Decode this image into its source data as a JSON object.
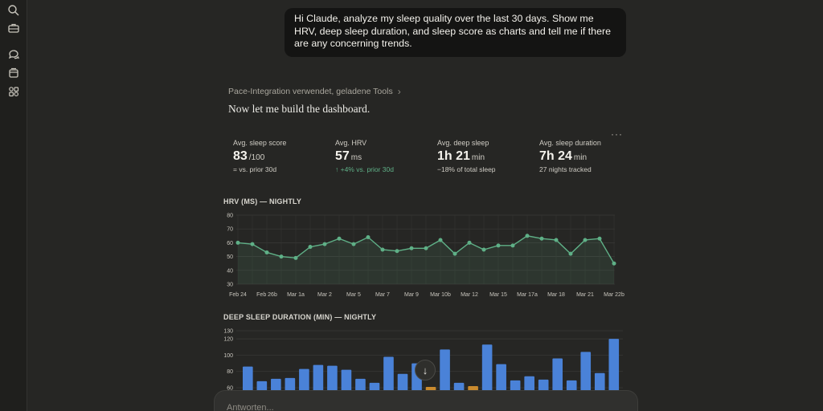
{
  "sidebar": {
    "icons": [
      "search-icon",
      "briefcase-icon",
      "chats-icon",
      "projects-icon",
      "artifacts-icon"
    ]
  },
  "user_message": "Hi Claude, analyze my sleep quality over the last 30 days. Show me HRV, deep sleep duration, and sleep score as charts and tell me if there are any concerning trends.",
  "tools_line": "Pace-Integration verwendet, geladene Tools",
  "assistant_lead": "Now let me build the dashboard.",
  "more_label": "···",
  "stats": [
    {
      "label": "Avg. sleep score",
      "value": "83",
      "unit": "/100",
      "sub": "= vs. prior 30d"
    },
    {
      "label": "Avg. HRV",
      "value": "57",
      "unit": "ms",
      "sub": "↑ +4% vs. prior 30d"
    },
    {
      "label": "Avg. deep sleep",
      "value": "1h 21",
      "unit": "min",
      "sub": "−18% of total sleep"
    },
    {
      "label": "Avg. sleep duration",
      "value": "7h 24",
      "unit": "min",
      "sub": "27 nights tracked"
    }
  ],
  "colors": {
    "accent_green": "#5fb087",
    "bar_blue": "#4a82d8",
    "bar_orange": "#c98a2e"
  },
  "chart_data": [
    {
      "type": "line",
      "title": "HRV (MS) — NIGHTLY",
      "ylim": [
        30,
        80
      ],
      "yticks": [
        80,
        70,
        60,
        50,
        40,
        30
      ],
      "x": [
        "Feb 24",
        "",
        "Feb 26b",
        "",
        "Mar 1a",
        "",
        "Mar 2",
        "",
        "Mar 5",
        "",
        "Mar 7",
        "",
        "Mar 9",
        "",
        "Mar 10b",
        "",
        "Mar 12",
        "",
        "Mar 15",
        "",
        "Mar 17a",
        "",
        "Mar 18",
        "",
        "Mar 21",
        "",
        "Mar 22b"
      ],
      "values": [
        60,
        59,
        53,
        50,
        49,
        57,
        59,
        63,
        59,
        64,
        55,
        54,
        56,
        56,
        62,
        52,
        60,
        55,
        58,
        58,
        65,
        63,
        62,
        52,
        62,
        63,
        45
      ],
      "grid": true
    },
    {
      "type": "bar",
      "title": "DEEP SLEEP DURATION (MIN) — NIGHTLY",
      "ylim": [
        60,
        130
      ],
      "yticks": [
        130,
        120,
        100,
        80,
        60
      ],
      "values": [
        86,
        68,
        71,
        72,
        83,
        88,
        87,
        82,
        71,
        66,
        98,
        77,
        90,
        61,
        107,
        66,
        62,
        113,
        89,
        69,
        74,
        70,
        96,
        69,
        104,
        78,
        120
      ],
      "highlight": [
        13,
        16
      ],
      "grid": true
    }
  ],
  "composer": {
    "placeholder": "Antworten..."
  }
}
